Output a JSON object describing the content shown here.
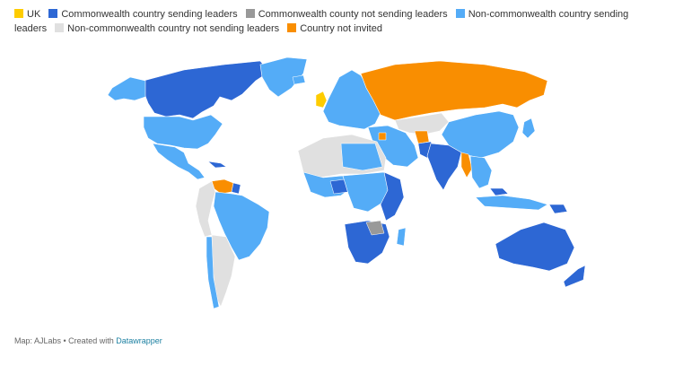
{
  "legend": {
    "items": [
      {
        "label": "UK",
        "color": "#fecc00"
      },
      {
        "label": "Commonwealth country sending leaders",
        "color": "#2d67d4"
      },
      {
        "label": "Commonwealth county not sending leaders",
        "color": "#999999"
      },
      {
        "label": "Non-commonwealth country sending leaders",
        "color": "#54acf7"
      },
      {
        "label": "Non-commonwealth country not sending leaders",
        "color": "#e0e0e0"
      },
      {
        "label": "Country not invited",
        "color": "#f98e01"
      }
    ]
  },
  "footer": {
    "source": "Map: AJLabs",
    "separator": " • Created with ",
    "link": "Datawrapper"
  }
}
